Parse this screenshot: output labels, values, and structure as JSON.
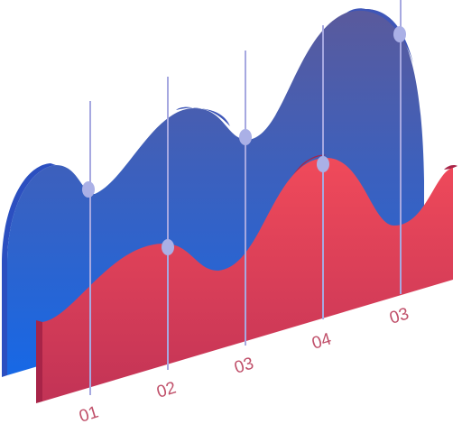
{
  "labels": [
    "01",
    "02",
    "03",
    "04",
    "03"
  ]
}
